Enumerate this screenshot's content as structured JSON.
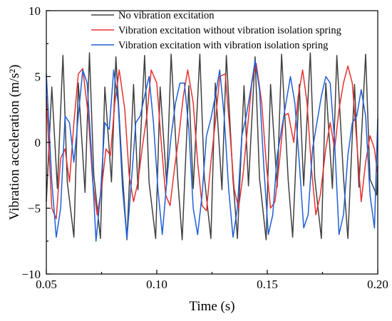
{
  "chart_data": {
    "type": "line",
    "title": "",
    "xlabel": "Time (s)",
    "ylabel": "Vibration acceleration  (m/s²)",
    "xlim": [
      0.05,
      0.2
    ],
    "ylim": [
      -10,
      10
    ],
    "x_ticks": [
      "0.05",
      "0.10",
      "0.15",
      "0.20"
    ],
    "x_tick_values": [
      0.05,
      0.1,
      0.15,
      0.2
    ],
    "y_ticks": [
      "10",
      "5",
      "0",
      "−5",
      "−10"
    ],
    "y_tick_values": [
      10,
      5,
      0,
      -5,
      -10
    ],
    "grid": false,
    "legend_position": "top",
    "series": [
      {
        "name": "No vibration excitation",
        "color": "#404040",
        "x": [
          0.05,
          0.0525,
          0.055,
          0.0575,
          0.0595,
          0.0625,
          0.0645,
          0.0675,
          0.0695,
          0.0715,
          0.0745,
          0.0765,
          0.0795,
          0.0815,
          0.0845,
          0.0865,
          0.0895,
          0.0915,
          0.0945,
          0.0965,
          0.0995,
          0.1015,
          0.1045,
          0.1065,
          0.1095,
          0.1115,
          0.1145,
          0.1165,
          0.1195,
          0.1215,
          0.1245,
          0.1265,
          0.1295,
          0.1315,
          0.1345,
          0.1365,
          0.1395,
          0.1415,
          0.1445,
          0.1465,
          0.1495,
          0.1515,
          0.1545,
          0.1565,
          0.1595,
          0.1615,
          0.1645,
          0.1665,
          0.1695,
          0.1715,
          0.1745,
          0.1765,
          0.1795,
          0.1815,
          0.1845,
          0.1865,
          0.1895,
          0.1915,
          0.1945,
          0.1965,
          0.1995,
          0.2
        ],
        "values": [
          -4.5,
          4.2,
          -3.5,
          6.6,
          -3.0,
          -7.2,
          4.5,
          -3.8,
          6.8,
          -2.5,
          -7.3,
          4.2,
          -3.0,
          6.5,
          -2.5,
          -7.4,
          4.4,
          -3.6,
          6.6,
          -3.0,
          -7.3,
          4.2,
          -3.2,
          6.7,
          -2.8,
          -7.4,
          4.3,
          -3.5,
          6.7,
          -2.6,
          -7.3,
          4.5,
          -3.6,
          6.6,
          -2.8,
          -7.3,
          4.3,
          -3.3,
          6.5,
          -2.7,
          -7.4,
          4.4,
          -3.4,
          6.7,
          -2.9,
          -7.2,
          4.4,
          -3.3,
          6.8,
          -2.7,
          -7.3,
          4.5,
          -3.5,
          6.6,
          -2.6,
          -7.3,
          4.4,
          -3.4,
          6.7,
          -2.8,
          -4.0,
          -1.8
        ]
      },
      {
        "name": "Vibration excitation without vibration isolation spring",
        "color": "#e8302f",
        "x": [
          0.05,
          0.0525,
          0.0545,
          0.0565,
          0.0585,
          0.0605,
          0.0625,
          0.0645,
          0.0665,
          0.069,
          0.071,
          0.073,
          0.075,
          0.077,
          0.079,
          0.081,
          0.083,
          0.0855,
          0.0875,
          0.0895,
          0.0915,
          0.0935,
          0.0955,
          0.0975,
          0.1,
          0.102,
          0.104,
          0.106,
          0.108,
          0.11,
          0.112,
          0.114,
          0.1165,
          0.1185,
          0.1205,
          0.1225,
          0.1245,
          0.1265,
          0.1285,
          0.131,
          0.133,
          0.135,
          0.137,
          0.139,
          0.141,
          0.143,
          0.145,
          0.1475,
          0.1495,
          0.1515,
          0.1535,
          0.1555,
          0.1575,
          0.1595,
          0.162,
          0.164,
          0.166,
          0.168,
          0.17,
          0.172,
          0.174,
          0.1765,
          0.1785,
          0.1805,
          0.1825,
          0.1845,
          0.1865,
          0.1885,
          0.1905,
          0.1925,
          0.1945,
          0.1965,
          0.1985,
          0.2
        ],
        "values": [
          3.5,
          -5.0,
          -5.8,
          -1.2,
          -0.5,
          -3.0,
          1.5,
          5.2,
          5.6,
          2.0,
          -3.0,
          -5.5,
          -3.5,
          -0.5,
          -1.0,
          3.0,
          5.5,
          2.5,
          -2.5,
          -4.5,
          -3.0,
          -0.3,
          2.0,
          5.5,
          4.5,
          0.0,
          -4.0,
          -4.8,
          -2.0,
          0.5,
          3.5,
          5.5,
          3.0,
          -1.5,
          -4.8,
          -5.2,
          -1.5,
          1.5,
          5.0,
          5.2,
          1.0,
          -3.5,
          -5.0,
          -2.5,
          1.0,
          4.5,
          6.0,
          3.0,
          -1.5,
          -5.0,
          -4.5,
          -1.5,
          2.0,
          2.2,
          0.0,
          3.5,
          5.5,
          3.0,
          -2.0,
          -5.5,
          -4.0,
          -0.5,
          1.5,
          -0.5,
          2.5,
          4.5,
          5.8,
          4.5,
          0.0,
          -4.5,
          -1.5,
          0.5,
          -0.5,
          -2.5
        ]
      },
      {
        "name": "Vibration excitation with vibration isolation spring",
        "color": "#1f5fd6",
        "x": [
          0.05,
          0.0525,
          0.0545,
          0.0565,
          0.0585,
          0.0605,
          0.0625,
          0.0645,
          0.0665,
          0.0685,
          0.0705,
          0.0725,
          0.0745,
          0.0765,
          0.0785,
          0.0805,
          0.0825,
          0.0845,
          0.0865,
          0.0885,
          0.0905,
          0.0925,
          0.0945,
          0.0965,
          0.0985,
          0.1005,
          0.1025,
          0.1045,
          0.1065,
          0.1085,
          0.1105,
          0.1125,
          0.1145,
          0.1165,
          0.1185,
          0.1205,
          0.1225,
          0.1245,
          0.1265,
          0.1285,
          0.1305,
          0.1325,
          0.1345,
          0.1365,
          0.1385,
          0.1405,
          0.1425,
          0.1445,
          0.1465,
          0.1485,
          0.1505,
          0.1525,
          0.1545,
          0.1565,
          0.1585,
          0.1605,
          0.1625,
          0.1645,
          0.1665,
          0.1685,
          0.1705,
          0.1725,
          0.1745,
          0.1765,
          0.1785,
          0.1805,
          0.1825,
          0.1845,
          0.1865,
          0.1885,
          0.1905,
          0.1925,
          0.1945,
          0.1965,
          0.1985,
          0.2
        ],
        "values": [
          5.2,
          -3.0,
          -7.2,
          -5.0,
          2.0,
          1.5,
          -1.5,
          2.0,
          5.5,
          4.5,
          -1.0,
          -7.5,
          -4.0,
          1.5,
          1.0,
          5.5,
          3.0,
          -3.5,
          -7.3,
          -3.0,
          1.5,
          2.0,
          3.5,
          5.0,
          1.5,
          -3.5,
          -7.0,
          -3.0,
          0.5,
          3.0,
          4.5,
          4.5,
          1.0,
          -5.0,
          -7.0,
          -4.0,
          0.5,
          1.8,
          3.5,
          5.5,
          2.0,
          -3.5,
          -7.2,
          -5.0,
          0.5,
          2.0,
          4.0,
          6.2,
          4.0,
          -2.0,
          -7.0,
          -5.5,
          -1.0,
          1.0,
          3.0,
          5.0,
          3.0,
          -1.5,
          -6.5,
          -5.5,
          -0.5,
          1.5,
          3.5,
          5.0,
          4.5,
          0.0,
          -7.0,
          -5.5,
          -1.0,
          1.5,
          2.0,
          4.0,
          2.0,
          -4.0,
          -6.5,
          1.8
        ]
      }
    ]
  }
}
